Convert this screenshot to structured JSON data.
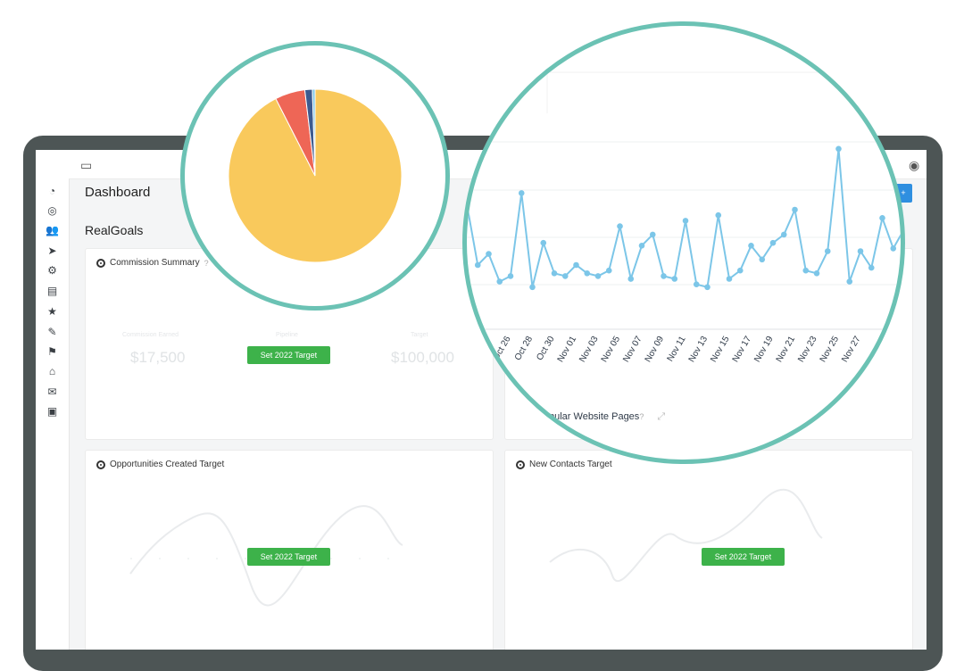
{
  "header": {
    "title": "Dashboard",
    "section": "RealGoals"
  },
  "panels": {
    "commission": {
      "title": "Commission Summary",
      "help": "?",
      "faint_labels": [
        "Commission Earned",
        "Pipeline",
        "Target"
      ],
      "faint_values": [
        "$17,500",
        "$100,000"
      ],
      "button": "Set 2022 Target"
    },
    "opportunities": {
      "title": "Opportunities Created Target",
      "button": "Set 2022 Target"
    },
    "contacts": {
      "title": "New Contacts Target",
      "button": "Set 2022 Target"
    },
    "popular_pages": {
      "title": "pular Website Pages",
      "help": "?"
    }
  },
  "colors": {
    "accent": "#6bc2b4",
    "button_green": "#3db24a",
    "button_blue": "#2f8fe0",
    "line": "#7cc6e8",
    "pie": [
      "#f9c95c",
      "#ee6656",
      "#3d5a8f",
      "#7cc6e8"
    ]
  },
  "chart_data": [
    {
      "type": "pie",
      "values": [
        92.5,
        5.6,
        1.4,
        0.5
      ],
      "colors": [
        "#f9c95c",
        "#ee6656",
        "#3d5a8f",
        "#7cc6e8"
      ]
    },
    {
      "type": "line",
      "x": [
        "",
        "",
        "",
        "",
        "Oct 26",
        "",
        "Oct 28",
        "",
        "Oct 30",
        "",
        "Nov 01",
        "",
        "Nov 03",
        "",
        "Nov 05",
        "",
        "Nov 07",
        "",
        "Nov 09",
        "",
        "Nov 11",
        "",
        "Nov 13",
        "",
        "Nov 15",
        "",
        "Nov 17",
        "",
        "Nov 19",
        "",
        "Nov 21",
        "",
        "Nov 23",
        "",
        "Nov 25",
        "",
        "Nov 27",
        "",
        "",
        "",
        ""
      ],
      "series": [
        {
          "values": [
            42,
            20,
            24,
            14,
            16,
            46,
            12,
            28,
            17,
            16,
            20,
            17,
            16,
            18,
            34,
            15,
            27,
            31,
            16,
            15,
            36,
            13,
            12,
            38,
            15,
            18,
            27,
            22,
            28,
            31,
            40,
            18,
            17,
            25,
            62,
            14,
            25,
            19,
            37,
            26,
            33
          ]
        }
      ]
    }
  ]
}
